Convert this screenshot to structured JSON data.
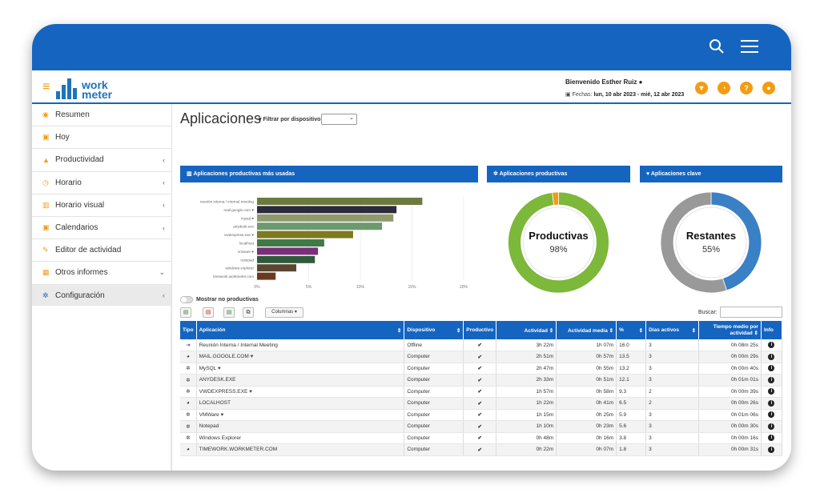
{
  "topbar": {
    "search_icon": "search-icon",
    "menu_icon": "hamburger-icon"
  },
  "header": {
    "welcome": "Bienvenido Esther Ruiz",
    "dates_label": "Fechas:",
    "dates_value": "lun, 10 abr 2023 - mié, 12 abr 2023",
    "logo_line1": "work",
    "logo_line2": "meter"
  },
  "sidebar": {
    "items": [
      {
        "label": "Resumen",
        "icon": "dashboard-icon",
        "glyph": "◉",
        "chevron": ""
      },
      {
        "label": "Hoy",
        "icon": "calendar-icon",
        "glyph": "▣",
        "chevron": ""
      },
      {
        "label": "Productividad",
        "icon": "area-chart-icon",
        "glyph": "▲",
        "chevron": "‹"
      },
      {
        "label": "Horario",
        "icon": "clock-icon",
        "glyph": "◷",
        "chevron": "‹"
      },
      {
        "label": "Horario visual",
        "icon": "bar-chart-icon",
        "glyph": "▥",
        "chevron": "‹"
      },
      {
        "label": "Calendarios",
        "icon": "calendar-icon",
        "glyph": "▣",
        "chevron": "‹"
      },
      {
        "label": "Editor de actividad",
        "icon": "edit-icon",
        "glyph": "✎",
        "chevron": ""
      },
      {
        "label": "Otros informes",
        "icon": "table-icon",
        "glyph": "▦",
        "chevron": "⌄"
      },
      {
        "label": "Configuración",
        "icon": "gear-icon",
        "glyph": "✲",
        "chevron": "‹"
      }
    ]
  },
  "page": {
    "title": "Aplicaciones",
    "filter_label": "Filtrar por dispositivo:",
    "filter_value": "⌄"
  },
  "panels": {
    "bar_title": "Aplicaciones productivas más usadas",
    "donut1_title": "Aplicaciones productivas",
    "donut2_title": "Aplicaciones clave"
  },
  "chart_data": [
    {
      "type": "bar",
      "orientation": "horizontal",
      "title": "Aplicaciones productivas más usadas",
      "categories": [
        "reunión interna / internal meeting",
        "mail.google.com ♥",
        "mysql ♥",
        "anydesk.exe",
        "vwdexpress.exe ♥",
        "localhost",
        "vmware ♥",
        "notepad",
        "windows explorer",
        "timework.workmeter.com"
      ],
      "values": [
        16.0,
        13.5,
        13.2,
        12.1,
        9.3,
        6.5,
        5.9,
        5.6,
        3.8,
        1.8
      ],
      "colors": [
        "#6b7a3f",
        "#2b2b3b",
        "#8e9a6b",
        "#6c9a6e",
        "#7e7a1e",
        "#3f7a48",
        "#7a2f7a",
        "#2e5a3a",
        "#5a4630",
        "#6a3a1e"
      ],
      "xticks": [
        "0%",
        "5%",
        "10%",
        "15%",
        "20%"
      ],
      "xlim": [
        0,
        20
      ]
    },
    {
      "type": "pie",
      "title": "Aplicaciones productivas",
      "center_label": "Productivas",
      "center_value": "98%",
      "slices": [
        {
          "name": "Productivas",
          "value": 98,
          "color": "#7cb83a"
        },
        {
          "name": "Otras",
          "value": 2,
          "color": "#f39c12"
        }
      ]
    },
    {
      "type": "pie",
      "title": "Aplicaciones clave",
      "center_label": "Restantes",
      "center_value": "55%",
      "slices": [
        {
          "name": "Clave",
          "value": 45,
          "color": "#3a80c4"
        },
        {
          "name": "Restantes",
          "value": 55,
          "color": "#999999"
        }
      ]
    }
  ],
  "table": {
    "toggle_label": "Mostrar no productivas",
    "columns_button": "Columnas ▾",
    "search_label": "Buscar:",
    "headers": [
      "Tipo",
      "Aplicación",
      "Dispositivo",
      "Productivo",
      "Actividad",
      "Actividad media",
      "%",
      "Dias activos",
      "Tiempo medio por actividad",
      "Info"
    ],
    "rows": [
      {
        "tipo": "⇥",
        "app": "Reunión Interna / Internal Meeting",
        "heart": "",
        "dev": "Offline",
        "prod": "✔",
        "act": "3h 22m",
        "media": "1h 07m",
        "pct": "16.0",
        "dias": "3",
        "tiempo": "0h 08m 25s"
      },
      {
        "tipo": "◕",
        "app": "MAIL.GOOGLE.COM",
        "heart": "♥",
        "dev": "Computer",
        "prod": "✔",
        "act": "2h 51m",
        "media": "0h 57m",
        "pct": "13.5",
        "dias": "3",
        "tiempo": "0h 00m 29s"
      },
      {
        "tipo": "✲",
        "app": "MySQL",
        "heart": "♥",
        "dev": "Computer",
        "prod": "✔",
        "act": "2h 47m",
        "media": "0h 55m",
        "pct": "13.2",
        "dias": "3",
        "tiempo": "0h 00m 40s"
      },
      {
        "tipo": "✲",
        "app": "ANYDESK.EXE",
        "heart": "",
        "dev": "Computer",
        "prod": "✔",
        "act": "2h 33m",
        "media": "0h 51m",
        "pct": "12.1",
        "dias": "3",
        "tiempo": "0h 01m 01s"
      },
      {
        "tipo": "✲",
        "app": "VWDEXPRESS.EXE",
        "heart": "♥",
        "dev": "Computer",
        "prod": "✔",
        "act": "1h 57m",
        "media": "0h 58m",
        "pct": "9.3",
        "dias": "2",
        "tiempo": "0h 00m 39s"
      },
      {
        "tipo": "◕",
        "app": "LOCALHOST",
        "heart": "",
        "dev": "Computer",
        "prod": "✔",
        "act": "1h 22m",
        "media": "0h 41m",
        "pct": "6.5",
        "dias": "2",
        "tiempo": "0h 00m 26s"
      },
      {
        "tipo": "✲",
        "app": "VMWare",
        "heart": "♥",
        "dev": "Computer",
        "prod": "✔",
        "act": "1h 15m",
        "media": "0h 25m",
        "pct": "5.9",
        "dias": "3",
        "tiempo": "0h 01m 06s"
      },
      {
        "tipo": "✲",
        "app": "Notepad",
        "heart": "",
        "dev": "Computer",
        "prod": "✔",
        "act": "1h 10m",
        "media": "0h 23m",
        "pct": "5.6",
        "dias": "3",
        "tiempo": "0h 00m 30s"
      },
      {
        "tipo": "✲",
        "app": "Windows Explorer",
        "heart": "",
        "dev": "Computer",
        "prod": "✔",
        "act": "0h 48m",
        "media": "0h 16m",
        "pct": "3.8",
        "dias": "3",
        "tiempo": "0h 00m 16s"
      },
      {
        "tipo": "◕",
        "app": "TIMEWORK.WORKMETER.COM",
        "heart": "",
        "dev": "Computer",
        "prod": "✔",
        "act": "0h 22m",
        "media": "0h 07m",
        "pct": "1.8",
        "dias": "3",
        "tiempo": "0h 00m 31s"
      }
    ]
  }
}
